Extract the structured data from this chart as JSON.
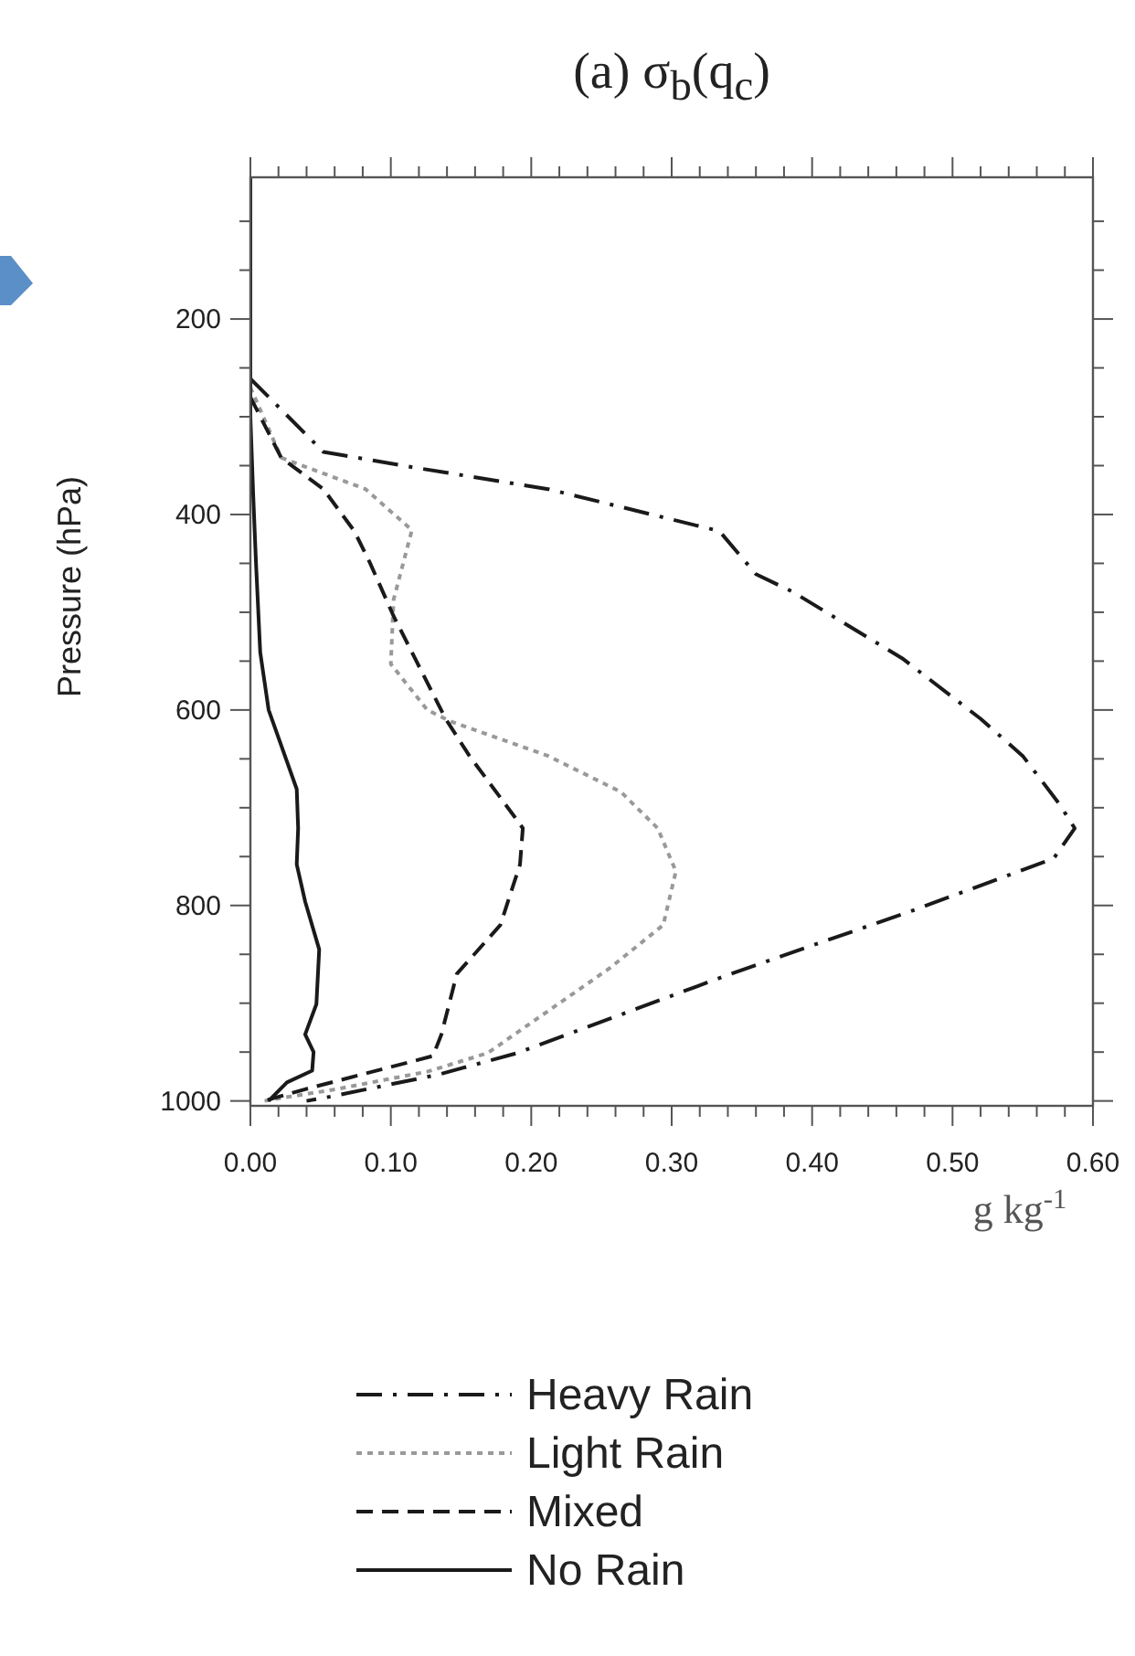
{
  "chart_data": {
    "type": "line",
    "title": "(a) σ$_{b}$(q$_{c}$)",
    "xlabel": "g kg$^{-1}$",
    "ylabel": "Pressure (hPa)",
    "xlim": [
      0,
      0.6
    ],
    "ylim": [
      1005,
      55
    ],
    "xticks": [
      {
        "value": 0,
        "label": "0.00"
      },
      {
        "value": 0.02,
        "label": null
      },
      {
        "value": 0.04,
        "label": null
      },
      {
        "value": 0.06,
        "label": null
      },
      {
        "value": 0.08,
        "label": null
      },
      {
        "value": 0.1,
        "label": "0.10"
      },
      {
        "value": 0.12,
        "label": null
      },
      {
        "value": 0.14,
        "label": null
      },
      {
        "value": 0.16,
        "label": null
      },
      {
        "value": 0.18,
        "label": null
      },
      {
        "value": 0.2,
        "label": "0.20"
      },
      {
        "value": 0.22,
        "label": null
      },
      {
        "value": 0.24,
        "label": null
      },
      {
        "value": 0.26,
        "label": null
      },
      {
        "value": 0.28,
        "label": null
      },
      {
        "value": 0.3,
        "label": "0.30"
      },
      {
        "value": 0.32,
        "label": null
      },
      {
        "value": 0.34,
        "label": null
      },
      {
        "value": 0.36,
        "label": null
      },
      {
        "value": 0.38,
        "label": null
      },
      {
        "value": 0.4,
        "label": "0.40"
      },
      {
        "value": 0.42,
        "label": null
      },
      {
        "value": 0.44,
        "label": null
      },
      {
        "value": 0.46,
        "label": null
      },
      {
        "value": 0.48,
        "label": null
      },
      {
        "value": 0.5,
        "label": "0.50"
      },
      {
        "value": 0.52,
        "label": null
      },
      {
        "value": 0.54,
        "label": null
      },
      {
        "value": 0.56,
        "label": null
      },
      {
        "value": 0.58,
        "label": null
      },
      {
        "value": 0.6,
        "label": "0.60"
      }
    ],
    "yticks": [
      {
        "value": 100,
        "label": null
      },
      {
        "value": 150,
        "label": null
      },
      200,
      {
        "value": 250,
        "label": null
      },
      {
        "value": 300,
        "label": null
      },
      {
        "value": 350,
        "label": null
      },
      400,
      {
        "value": 450,
        "label": null
      },
      {
        "value": 500,
        "label": null
      },
      {
        "value": 550,
        "label": null
      },
      600,
      {
        "value": 650,
        "label": null
      },
      {
        "value": 700,
        "label": null
      },
      {
        "value": 750,
        "label": null
      },
      800,
      {
        "value": 850,
        "label": null
      },
      {
        "value": 900,
        "label": null
      },
      {
        "value": 950,
        "label": null
      },
      1000
    ],
    "legend": "bottom",
    "grid": false,
    "marker": "none",
    "series": [
      {
        "name": "Heavy Rain",
        "color": "#1a1a1a",
        "line_style": "dashdot",
        "x": [
          0,
          0.052,
          0.117,
          0.212,
          0.334,
          0.36,
          0.386,
          0.464,
          0.52,
          0.55,
          0.576,
          0.587,
          0.572,
          0.472,
          0.342,
          0.19,
          0.134,
          0.052,
          0.04
        ],
        "values": [
          261,
          336,
          352,
          374,
          417,
          461,
          479,
          547,
          609,
          647,
          696,
          721,
          752,
          805,
          870,
          951,
          973,
          997,
          1000
        ]
      },
      {
        "name": "Light Rain",
        "color": "#999999",
        "line_style": "dotted",
        "x": [
          0,
          0.022,
          0.082,
          0.115,
          0.102,
          0.1,
          0.126,
          0.143,
          0.212,
          0.264,
          0.29,
          0.303,
          0.294,
          0.256,
          0.169,
          0.126,
          0.061,
          0.022,
          0.01
        ],
        "values": [
          270,
          342,
          374,
          416,
          487,
          553,
          600,
          612,
          647,
          684,
          721,
          765,
          820,
          864,
          951,
          970,
          988,
          997,
          1000
        ]
      },
      {
        "name": "Mixed",
        "color": "#1a1a1a",
        "line_style": "dashed",
        "x": [
          0,
          0.022,
          0.052,
          0.074,
          0.085,
          0.102,
          0.139,
          0.156,
          0.188,
          0.194,
          0.192,
          0.178,
          0.147,
          0.136,
          0.13,
          0.039,
          0.017,
          0.01
        ],
        "values": [
          280,
          342,
          374,
          417,
          449,
          504,
          609,
          647,
          709,
          721,
          758,
          820,
          870,
          932,
          954,
          988,
          997,
          1000
        ]
      },
      {
        "name": "No Rain",
        "color": "#1a1a1a",
        "line_style": "solid",
        "x": [
          0,
          0,
          0.002,
          0.004,
          0.007,
          0.013,
          0.033,
          0.034,
          0.033,
          0.039,
          0.049,
          0.047,
          0.039,
          0.045,
          0.044,
          0.026,
          0.013
        ],
        "values": [
          55,
          300,
          380,
          450,
          541,
          600,
          681,
          721,
          758,
          796,
          845,
          901,
          932,
          950,
          969,
          981,
          1000
        ]
      }
    ]
  }
}
